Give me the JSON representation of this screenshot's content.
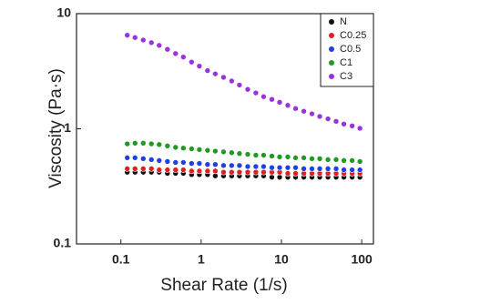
{
  "chart_data": {
    "type": "scatter",
    "x_label": "Shear Rate (1/s)",
    "y_label": "Viscosity (Pa·s)",
    "x": [
      0.12,
      0.15,
      0.19,
      0.24,
      0.3,
      0.38,
      0.48,
      0.6,
      0.76,
      0.95,
      1.2,
      1.5,
      1.9,
      2.4,
      3,
      3.8,
      4.8,
      6,
      7.6,
      9.5,
      12,
      15,
      19,
      24,
      30,
      38,
      48,
      60,
      76,
      95
    ],
    "series": [
      {
        "name": "N",
        "color": "#111111",
        "values": [
          0.42,
          0.42,
          0.42,
          0.42,
          0.42,
          0.41,
          0.41,
          0.41,
          0.4,
          0.4,
          0.4,
          0.39,
          0.39,
          0.39,
          0.39,
          0.39,
          0.39,
          0.39,
          0.38,
          0.38,
          0.38,
          0.38,
          0.38,
          0.38,
          0.38,
          0.38,
          0.38,
          0.38,
          0.38,
          0.38
        ]
      },
      {
        "name": "C0.25",
        "color": "#e02020",
        "values": [
          0.45,
          0.45,
          0.45,
          0.45,
          0.44,
          0.44,
          0.44,
          0.44,
          0.43,
          0.43,
          0.43,
          0.43,
          0.42,
          0.42,
          0.42,
          0.42,
          0.42,
          0.42,
          0.42,
          0.42,
          0.41,
          0.41,
          0.41,
          0.41,
          0.41,
          0.41,
          0.41,
          0.41,
          0.41,
          0.41
        ]
      },
      {
        "name": "C0.5",
        "color": "#2040e0",
        "values": [
          0.56,
          0.56,
          0.55,
          0.54,
          0.53,
          0.52,
          0.51,
          0.51,
          0.5,
          0.5,
          0.49,
          0.49,
          0.48,
          0.48,
          0.48,
          0.47,
          0.47,
          0.47,
          0.46,
          0.46,
          0.46,
          0.46,
          0.45,
          0.45,
          0.45,
          0.45,
          0.45,
          0.44,
          0.44,
          0.44
        ]
      },
      {
        "name": "C1",
        "color": "#229922",
        "values": [
          0.74,
          0.75,
          0.75,
          0.74,
          0.73,
          0.71,
          0.69,
          0.68,
          0.67,
          0.66,
          0.65,
          0.64,
          0.63,
          0.62,
          0.61,
          0.6,
          0.59,
          0.59,
          0.58,
          0.57,
          0.57,
          0.56,
          0.56,
          0.55,
          0.55,
          0.54,
          0.54,
          0.53,
          0.53,
          0.52
        ]
      },
      {
        "name": "C3",
        "color": "#9933dd",
        "values": [
          6.5,
          6.2,
          5.9,
          5.6,
          5.3,
          4.9,
          4.5,
          4.2,
          3.8,
          3.5,
          3.2,
          3.0,
          2.8,
          2.6,
          2.4,
          2.2,
          2.05,
          1.9,
          1.8,
          1.7,
          1.6,
          1.5,
          1.42,
          1.35,
          1.28,
          1.22,
          1.16,
          1.1,
          1.06,
          1.01
        ]
      }
    ],
    "xlim": [
      0.028,
      140
    ],
    "ylim": [
      0.1,
      10
    ],
    "xticks": [
      0.1,
      1,
      10,
      100
    ],
    "yticks": [
      0.1,
      1,
      10
    ],
    "xscale": "log",
    "yscale": "log",
    "legend": "upper right"
  }
}
